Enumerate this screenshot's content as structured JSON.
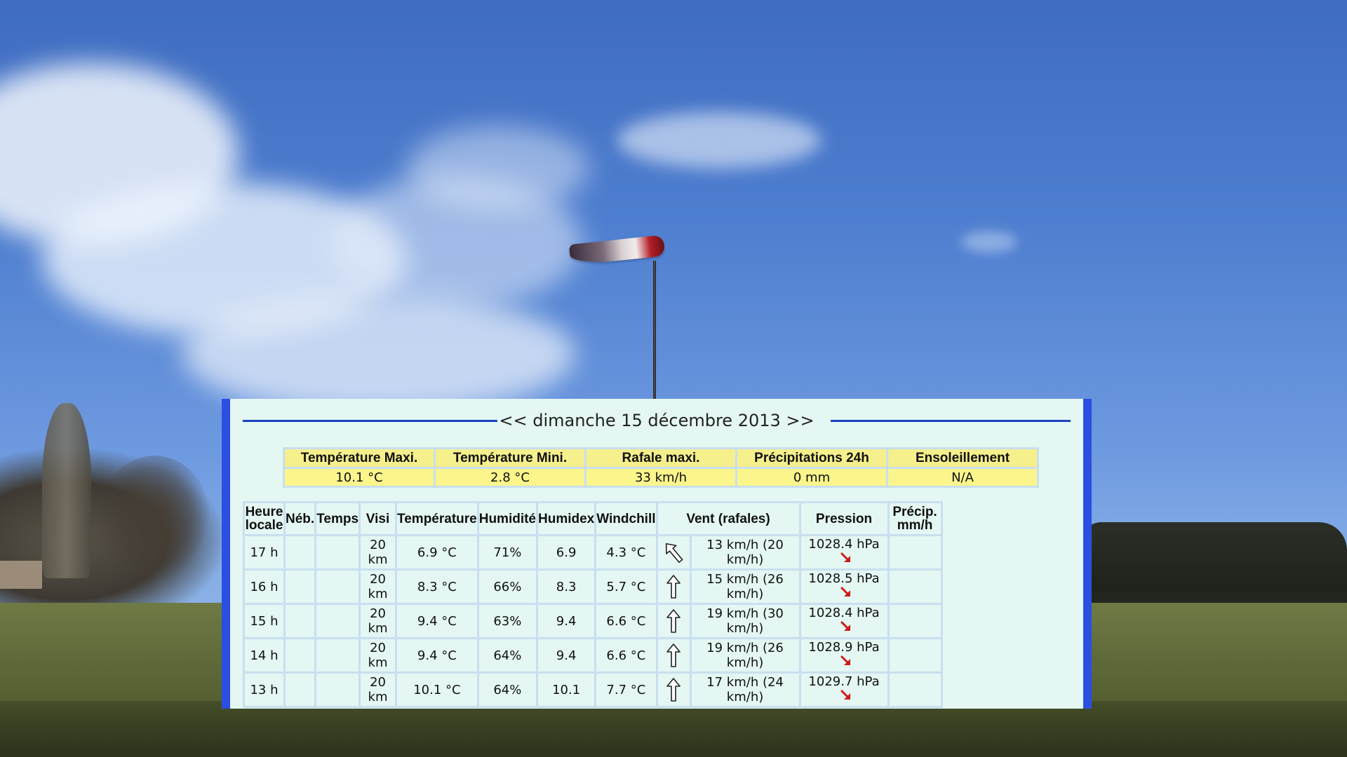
{
  "date_header": {
    "prev_label": "<<",
    "date": "dimanche 15 décembre 2013",
    "next_label": ">>"
  },
  "summary": {
    "headers": [
      "Température Maxi.",
      "Température Mini.",
      "Rafale maxi.",
      "Précipitations 24h",
      "Ensoleillement"
    ],
    "values": [
      "10.1 °C",
      "2.8 °C",
      "33 km/h",
      "0 mm",
      "N/A"
    ]
  },
  "hourly": {
    "headers": {
      "heure_line1": "Heure",
      "heure_line2": "locale",
      "neb": "Néb.",
      "temps": "Temps",
      "visi": "Visi",
      "temperature": "Température",
      "humidite": "Humidité",
      "humidex": "Humidex",
      "windchill": "Windchill",
      "vent": "Vent (rafales)",
      "pression": "Pression",
      "precip_line1": "Précip.",
      "precip_line2": "mm/h"
    },
    "rows": [
      {
        "heure": "17 h",
        "visi": "20 km",
        "temperature": "6.9 °C",
        "humidite": "71%",
        "humidex": "6.9",
        "windchill": "4.3 °C",
        "wind_icon": "arrow-up-left-icon",
        "vent": "13 km/h (20 km/h)",
        "pression": "1028.4 hPa",
        "trend_icon": "pressure-falling-icon"
      },
      {
        "heure": "16 h",
        "visi": "20 km",
        "temperature": "8.3 °C",
        "humidite": "66%",
        "humidex": "8.3",
        "windchill": "5.7 °C",
        "wind_icon": "arrow-up-icon",
        "vent": "15 km/h (26 km/h)",
        "pression": "1028.5 hPa",
        "trend_icon": "pressure-falling-icon"
      },
      {
        "heure": "15 h",
        "visi": "20 km",
        "temperature": "9.4 °C",
        "humidite": "63%",
        "humidex": "9.4",
        "windchill": "6.6 °C",
        "wind_icon": "arrow-up-icon",
        "vent": "19 km/h (30 km/h)",
        "pression": "1028.4 hPa",
        "trend_icon": "pressure-falling-icon"
      },
      {
        "heure": "14 h",
        "visi": "20 km",
        "temperature": "9.4 °C",
        "humidite": "64%",
        "humidex": "9.4",
        "windchill": "6.6 °C",
        "wind_icon": "arrow-up-icon",
        "vent": "19 km/h (26 km/h)",
        "pression": "1028.9 hPa",
        "trend_icon": "pressure-falling-icon"
      },
      {
        "heure": "13 h",
        "visi": "20 km",
        "temperature": "10.1 °C",
        "humidite": "64%",
        "humidex": "10.1",
        "windchill": "7.7 °C",
        "wind_icon": "arrow-up-icon",
        "vent": "17 km/h (24 km/h)",
        "pression": "1029.7 hPa",
        "trend_icon": "pressure-falling-icon"
      }
    ]
  },
  "colors": {
    "panel_border": "#2b4fe0",
    "panel_bg": "#e4f7f2",
    "summary_bg": "#fbf58c",
    "trend_arrow": "#cc1a1a"
  }
}
